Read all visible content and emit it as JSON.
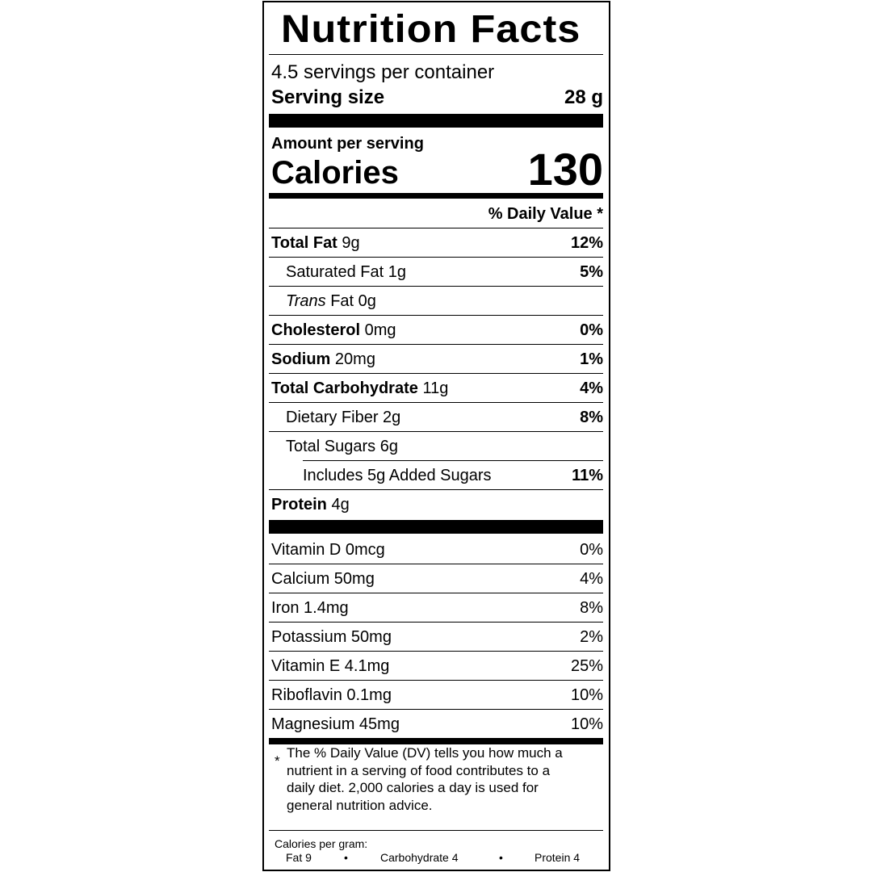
{
  "title": "Nutrition Facts",
  "servings": "4.5 servings per container",
  "serving_size": {
    "label": "Serving size",
    "value": "28 g"
  },
  "amount_per_serving": "Amount per serving",
  "calories": {
    "label": "Calories",
    "value": "130"
  },
  "daily_value_header": "% Daily Value *",
  "nutrients": [
    {
      "name": "Total Fat",
      "amount": "9g",
      "dv": "12%"
    },
    {
      "name": "Saturated Fat",
      "amount": "1g",
      "dv": "5%"
    },
    {
      "italic": "Trans",
      "name": "Fat",
      "amount": "0g"
    },
    {
      "name": "Cholesterol",
      "amount": "0mg",
      "dv": "0%"
    },
    {
      "name": "Sodium",
      "amount": "20mg",
      "dv": "1%"
    },
    {
      "name": "Total Carbohydrate",
      "amount": "11g",
      "dv": "4%"
    },
    {
      "name": "Dietary Fiber",
      "amount": "2g",
      "dv": "8%"
    },
    {
      "name": "Total Sugars",
      "amount": "6g"
    },
    {
      "name": "Includes 5g Added Sugars",
      "dv": "11%"
    },
    {
      "name": "Protein",
      "amount": "4g"
    }
  ],
  "vitamins": [
    {
      "name": "Vitamin D 0mcg",
      "dv": "0%"
    },
    {
      "name": "Calcium 50mg",
      "dv": "4%"
    },
    {
      "name": "Iron 1.4mg",
      "dv": "8%"
    },
    {
      "name": "Potassium 50mg",
      "dv": "2%"
    },
    {
      "name": "Vitamin E 4.1mg",
      "dv": "25%"
    },
    {
      "name": "Riboflavin 0.1mg",
      "dv": "10%"
    },
    {
      "name": "Magnesium 45mg",
      "dv": "10%"
    }
  ],
  "footnote": {
    "marker": "*",
    "text": "The % Daily Value (DV) tells you how much a nutrient in a serving of food contributes to a daily diet. 2,000 calories a day is used for general nutrition advice."
  },
  "calories_per_gram": {
    "label": "Calories per gram:",
    "fat": "Fat 9",
    "carbohydrate": "Carbohydrate 4",
    "protein": "Protein 4",
    "separator": "•"
  }
}
